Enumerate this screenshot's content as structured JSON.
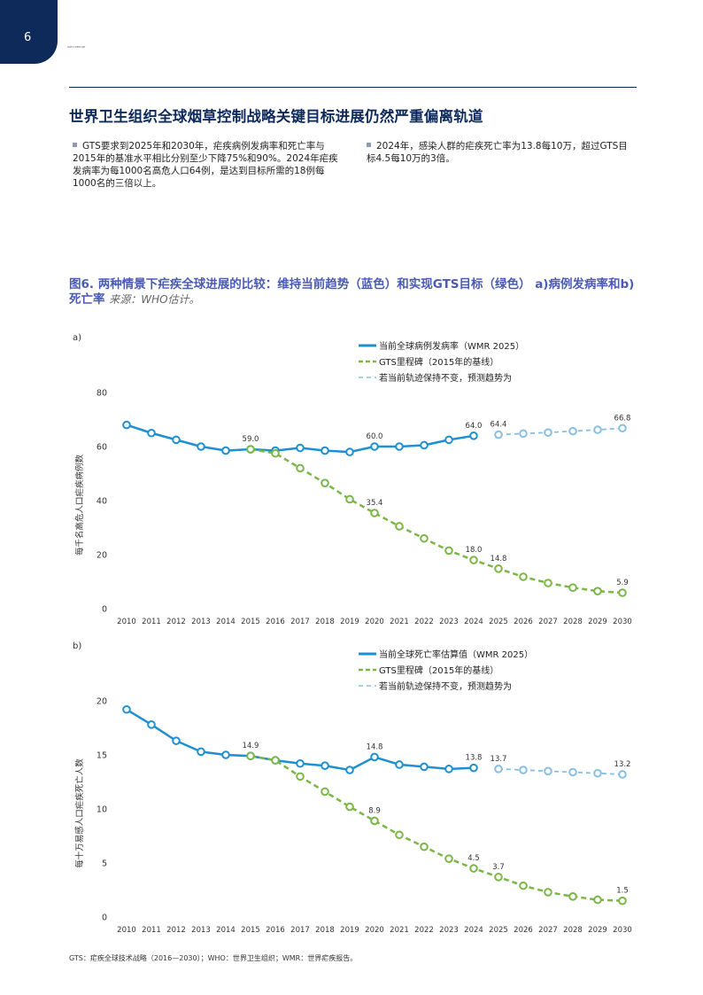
{
  "page_number": "6",
  "header_tiny": "WHO REPORT",
  "title": "世界卫生组织全球烟草控制战略关键目标进展仍然严重偏离轨道",
  "bullets": [
    "GTS要求到2025年和2030年，疟疾病例发病率和死亡率与2015年的基准水平相比分别至少下降75%和90%。2024年疟疾发病率为每1000名高危人口64例，是达到目标所需的18例每1000名的三倍以上。",
    "2024年，感染人群的疟疾死亡率为13.8每10万，超过GTS目标4.5每10万的3倍。"
  ],
  "figure_title": "图6. 两种情景下疟疾全球进展的比较：维持当前趋势（蓝色）和实现GTS目标（绿色） a)病例发病率和b)死亡率",
  "figure_source": "来源：WHO估计。",
  "footnote": "GTS：疟疾全球技术战略（2016—2030）；WHO：世界卫生组织；WMR：世界疟疾报告。",
  "colors": {
    "blue": "#1e8fd0",
    "green": "#7ab648",
    "lightblue": "#86bfe3",
    "navy": "#0e2a5b"
  },
  "chart_data": [
    {
      "panel_label": "a)",
      "type": "line",
      "ylabel": "每千名高危人口疟疾病例数",
      "ylim": [
        0,
        80
      ],
      "yticks": [
        0,
        20,
        40,
        60,
        80
      ],
      "x": [
        2010,
        2011,
        2012,
        2013,
        2014,
        2015,
        2016,
        2017,
        2018,
        2019,
        2020,
        2021,
        2022,
        2023,
        2024,
        2025,
        2026,
        2027,
        2028,
        2029,
        2030
      ],
      "legend": [
        "当前全球病例发病率（WMR 2025）",
        "GTS里程碑（2015年的基线）",
        "若当前轨迹保持不变，预测趋势为"
      ],
      "series": [
        {
          "name": "当前全球病例发病率（WMR 2025）",
          "style": "solid",
          "color": "#1e8fd0",
          "x": [
            2010,
            2011,
            2012,
            2013,
            2014,
            2015,
            2016,
            2017,
            2018,
            2019,
            2020,
            2021,
            2022,
            2023,
            2024
          ],
          "values": [
            68,
            65,
            62.5,
            60,
            58.5,
            59.0,
            58.5,
            59.5,
            58.5,
            58,
            60.0,
            60,
            60.5,
            62.5,
            64.0
          ]
        },
        {
          "name": "GTS里程碑（2015年的基线）",
          "style": "dashed",
          "color": "#7ab648",
          "x": [
            2015,
            2016,
            2017,
            2018,
            2019,
            2020,
            2021,
            2022,
            2023,
            2024,
            2025,
            2026,
            2027,
            2028,
            2029,
            2030
          ],
          "values": [
            59.0,
            57.5,
            52,
            46.5,
            40.5,
            35.4,
            30.5,
            26,
            21.5,
            18.0,
            14.8,
            11.8,
            9.5,
            7.8,
            6.5,
            5.9
          ]
        },
        {
          "name": "若当前轨迹保持不变，预测趋势为",
          "style": "dotted",
          "color": "#86bfe3",
          "x": [
            2025,
            2026,
            2027,
            2028,
            2029,
            2030
          ],
          "values": [
            64.4,
            64.8,
            65.2,
            65.7,
            66.2,
            66.8
          ]
        }
      ],
      "data_labels": [
        {
          "x": 2015,
          "y": 59.0,
          "text": "59.0",
          "pos": "above"
        },
        {
          "x": 2020,
          "y": 60.0,
          "text": "60.0",
          "pos": "above"
        },
        {
          "x": 2024,
          "y": 64.0,
          "text": "64.0",
          "pos": "above"
        },
        {
          "x": 2025,
          "y": 64.4,
          "text": "64.4",
          "pos": "above"
        },
        {
          "x": 2030,
          "y": 66.8,
          "text": "66.8",
          "pos": "above"
        },
        {
          "x": 2020,
          "y": 35.4,
          "text": "35.4",
          "pos": "above"
        },
        {
          "x": 2024,
          "y": 18.0,
          "text": "18.0",
          "pos": "above"
        },
        {
          "x": 2025,
          "y": 14.8,
          "text": "14.8",
          "pos": "above"
        },
        {
          "x": 2030,
          "y": 5.9,
          "text": "5.9",
          "pos": "above"
        }
      ]
    },
    {
      "panel_label": "b)",
      "type": "line",
      "ylabel": "每十万易感人口疟疾死亡人数",
      "ylim": [
        0,
        20
      ],
      "yticks": [
        0,
        5,
        10,
        15,
        20
      ],
      "x": [
        2010,
        2011,
        2012,
        2013,
        2014,
        2015,
        2016,
        2017,
        2018,
        2019,
        2020,
        2021,
        2022,
        2023,
        2024,
        2025,
        2026,
        2027,
        2028,
        2029,
        2030
      ],
      "legend": [
        "当前全球死亡率估算值（WMR 2025）",
        "GTS里程碑（2015年的基线）",
        "若当前轨迹保持不变，预测趋势为"
      ],
      "series": [
        {
          "name": "当前全球死亡率估算值（WMR 2025）",
          "style": "solid",
          "color": "#1e8fd0",
          "x": [
            2010,
            2011,
            2012,
            2013,
            2014,
            2015,
            2016,
            2017,
            2018,
            2019,
            2020,
            2021,
            2022,
            2023,
            2024
          ],
          "values": [
            19.2,
            17.8,
            16.3,
            15.3,
            15.0,
            14.9,
            14.5,
            14.2,
            14.0,
            13.6,
            14.8,
            14.1,
            13.9,
            13.7,
            13.8
          ]
        },
        {
          "name": "GTS里程碑（2015年的基线）",
          "style": "dashed",
          "color": "#7ab648",
          "x": [
            2015,
            2016,
            2017,
            2018,
            2019,
            2020,
            2021,
            2022,
            2023,
            2024,
            2025,
            2026,
            2027,
            2028,
            2029,
            2030
          ],
          "values": [
            14.9,
            14.5,
            13.0,
            11.6,
            10.2,
            8.9,
            7.6,
            6.5,
            5.4,
            4.5,
            3.7,
            2.9,
            2.3,
            1.9,
            1.6,
            1.5
          ]
        },
        {
          "name": "若当前轨迹保持不变，预测趋势为",
          "style": "dotted",
          "color": "#86bfe3",
          "x": [
            2025,
            2026,
            2027,
            2028,
            2029,
            2030
          ],
          "values": [
            13.7,
            13.6,
            13.5,
            13.4,
            13.3,
            13.2
          ]
        }
      ],
      "data_labels": [
        {
          "x": 2015,
          "y": 14.9,
          "text": "14.9",
          "pos": "above"
        },
        {
          "x": 2020,
          "y": 14.8,
          "text": "14.8",
          "pos": "above"
        },
        {
          "x": 2024,
          "y": 13.8,
          "text": "13.8",
          "pos": "above"
        },
        {
          "x": 2025,
          "y": 13.7,
          "text": "13.7",
          "pos": "above"
        },
        {
          "x": 2030,
          "y": 13.2,
          "text": "13.2",
          "pos": "above"
        },
        {
          "x": 2020,
          "y": 8.9,
          "text": "8.9",
          "pos": "above"
        },
        {
          "x": 2024,
          "y": 4.5,
          "text": "4.5",
          "pos": "above"
        },
        {
          "x": 2025,
          "y": 3.7,
          "text": "3.7",
          "pos": "above"
        },
        {
          "x": 2030,
          "y": 1.5,
          "text": "1.5",
          "pos": "above"
        }
      ]
    }
  ]
}
